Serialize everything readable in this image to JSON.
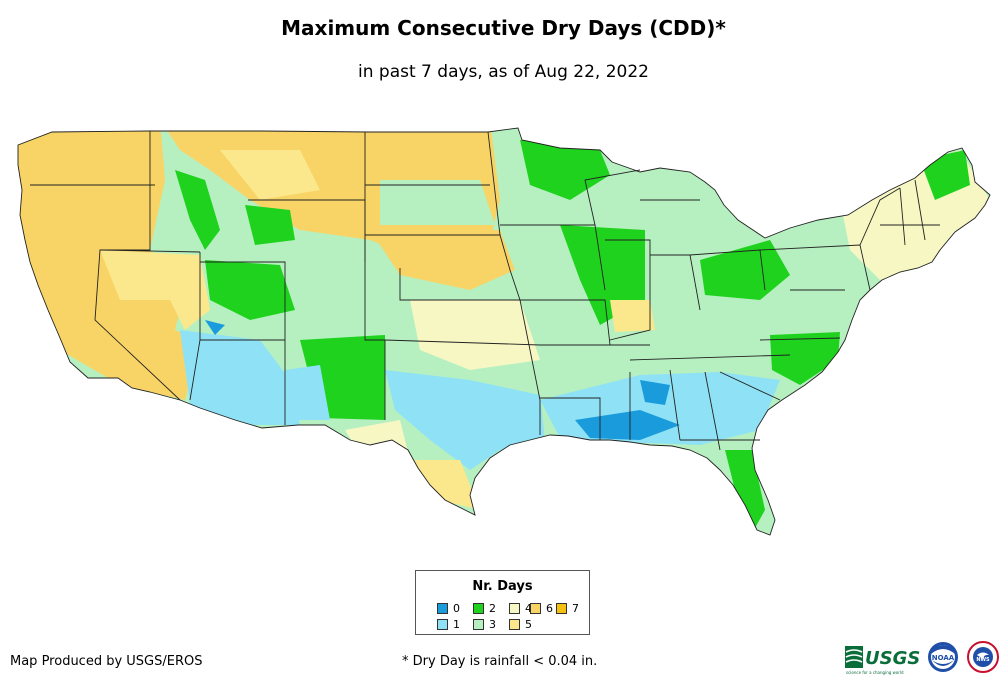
{
  "title": "Maximum Consecutive Dry Days (CDD)*",
  "subtitle": "in past 7 days, as of Aug 22, 2022",
  "legend": {
    "title": "Nr. Days",
    "items": [
      {
        "label": "0",
        "color": "#1a9bdc"
      },
      {
        "label": "1",
        "color": "#8fe2f5"
      },
      {
        "label": "2",
        "color": "#1ed21e"
      },
      {
        "label": "3",
        "color": "#b6f0c0"
      },
      {
        "label": "4",
        "color": "#f7f7c4"
      },
      {
        "label": "5",
        "color": "#fbe88c"
      },
      {
        "label": "6",
        "color": "#f8d466"
      },
      {
        "label": "7",
        "color": "#f5c010"
      }
    ]
  },
  "credit": "Map Produced by USGS/EROS",
  "footnote": "* Dry Day is rainfall < 0.04 in.",
  "logos": [
    {
      "name": "usgs-logo",
      "text": "USGS",
      "tagline": "science for a changing world"
    },
    {
      "name": "noaa-logo",
      "text": "NOAA"
    },
    {
      "name": "nws-logo",
      "text": "NWS"
    }
  ]
}
